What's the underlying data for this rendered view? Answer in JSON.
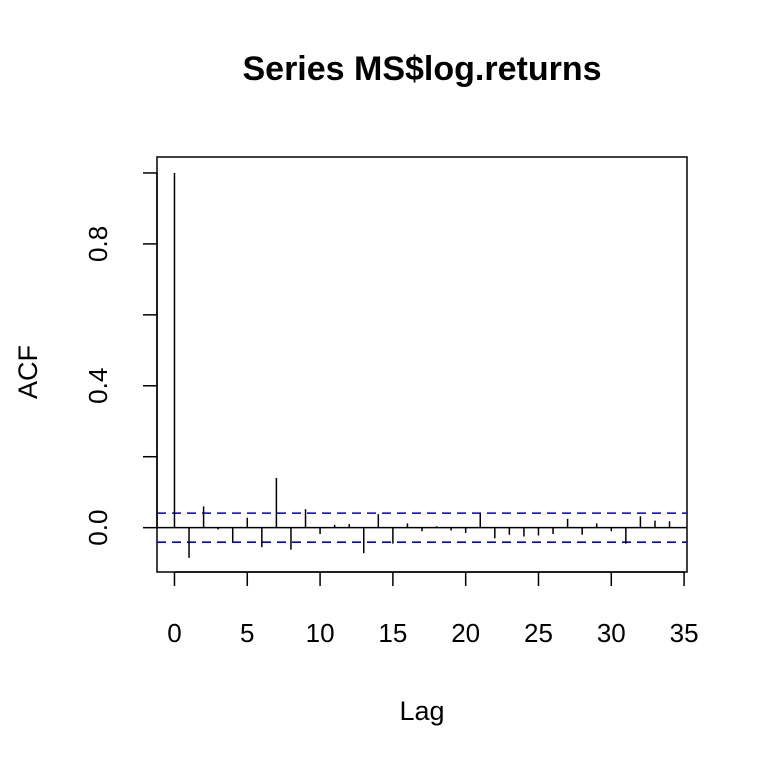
{
  "chart_data": {
    "type": "bar",
    "title": "Series  MS$log.returns",
    "xlabel": "Lag",
    "ylabel": "ACF",
    "xlim": [
      -1.2,
      35.2
    ],
    "ylim": [
      -0.125,
      1.045
    ],
    "x_ticks": [
      0,
      5,
      10,
      15,
      20,
      25,
      30,
      35
    ],
    "y_ticks": [
      0.0,
      0.2,
      0.4,
      0.6,
      0.8,
      1.0
    ],
    "y_tick_labels": [
      "0.0",
      "",
      "0.4",
      "",
      "0.8",
      ""
    ],
    "lags": [
      0,
      1,
      2,
      3,
      4,
      5,
      6,
      7,
      8,
      9,
      10,
      11,
      12,
      13,
      14,
      15,
      16,
      17,
      18,
      19,
      20,
      21,
      22,
      23,
      24,
      25,
      26,
      27,
      28,
      29,
      30,
      31,
      32,
      33,
      34
    ],
    "acf": [
      1.0,
      -0.085,
      0.06,
      -0.005,
      -0.04,
      0.028,
      -0.055,
      0.14,
      -0.062,
      0.052,
      -0.018,
      0.008,
      0.01,
      -0.072,
      0.038,
      -0.045,
      0.012,
      -0.01,
      0.004,
      -0.008,
      -0.015,
      0.04,
      -0.03,
      -0.02,
      -0.025,
      -0.022,
      -0.018,
      0.025,
      -0.02,
      0.012,
      -0.01,
      -0.045,
      0.032,
      0.02,
      0.018
    ],
    "confidence_bound": 0.041,
    "confidence_color": "#0000cc",
    "grid": false
  }
}
